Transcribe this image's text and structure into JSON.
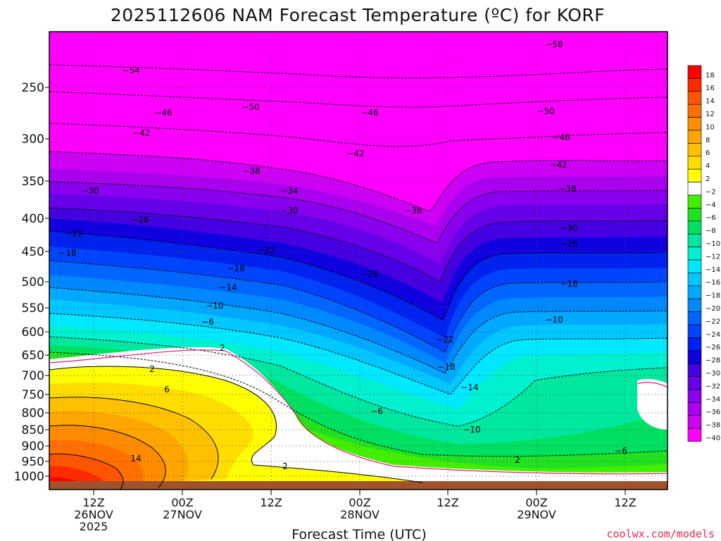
{
  "chart_data": {
    "type": "heatmap",
    "title": "2025112606 NAM Forecast Temperature (ºC) for KORF",
    "xlabel": "Forecast Time (UTC)",
    "ylabel": "",
    "credit": "coolwx.com/models",
    "y_axis": {
      "scale": "pressure (log-like, decreasing upward)",
      "ticks": [
        250,
        300,
        350,
        400,
        450,
        500,
        550,
        600,
        650,
        700,
        750,
        800,
        850,
        900,
        950,
        1000
      ]
    },
    "x_axis": {
      "ticks": [
        {
          "line1": "12Z",
          "line2": "26NOV",
          "line3": "2025"
        },
        {
          "line1": "00Z",
          "line2": "27NOV",
          "line3": ""
        },
        {
          "line1": "12Z",
          "line2": "",
          "line3": ""
        },
        {
          "line1": "00Z",
          "line2": "28NOV",
          "line3": ""
        },
        {
          "line1": "12Z",
          "line2": "",
          "line3": ""
        },
        {
          "line1": "00Z",
          "line2": "29NOV",
          "line3": ""
        },
        {
          "line1": "12Z",
          "line2": "",
          "line3": ""
        }
      ]
    },
    "colorbar": {
      "labels": [
        "18",
        "16",
        "14",
        "12",
        "10",
        "8",
        "6",
        "4",
        "2",
        "-2",
        "-4",
        "-6",
        "-8",
        "-10",
        "-12",
        "-14",
        "-16",
        "-18",
        "-20",
        "-22",
        "-24",
        "-26",
        "-28",
        "-30",
        "-32",
        "-34",
        "-36",
        "-38",
        "-40"
      ],
      "colors": [
        "#ff0000",
        "#ff2a00",
        "#ff5500",
        "#ff7000",
        "#ff8c00",
        "#ffa500",
        "#ffc000",
        "#ffdd00",
        "#ffff00",
        "#ffffff",
        "#44ee00",
        "#22e022",
        "#00e060",
        "#00e8a0",
        "#00f0d0",
        "#00e8ff",
        "#00c8ff",
        "#00a8ff",
        "#0088ff",
        "#0066ff",
        "#0044ff",
        "#0022ee",
        "#1000e0",
        "#4400e0",
        "#6600e8",
        "#8800ee",
        "#aa00f0",
        "#cc00f4",
        "#ff00ff"
      ]
    },
    "contour_labels": [
      {
        "text": "-58"
      },
      {
        "text": "-54"
      },
      {
        "text": "-50"
      },
      {
        "text": "-50"
      },
      {
        "text": "-46"
      },
      {
        "text": "-46"
      },
      {
        "text": "-46"
      },
      {
        "text": "-42"
      },
      {
        "text": "-42"
      },
      {
        "text": "-42"
      },
      {
        "text": "-38"
      },
      {
        "text": "-38"
      },
      {
        "text": "-38"
      },
      {
        "text": "-34"
      },
      {
        "text": "-30"
      },
      {
        "text": "-30"
      },
      {
        "text": "-30"
      },
      {
        "text": "-26"
      },
      {
        "text": "-26"
      },
      {
        "text": "-26"
      },
      {
        "text": "-22"
      },
      {
        "text": "-22"
      },
      {
        "text": "-22"
      },
      {
        "text": "-18"
      },
      {
        "text": "-18"
      },
      {
        "text": "-18"
      },
      {
        "text": "-18"
      },
      {
        "text": "-14"
      },
      {
        "text": "-14"
      },
      {
        "text": "-10"
      },
      {
        "text": "-10"
      },
      {
        "text": "-10"
      },
      {
        "text": "-6"
      },
      {
        "text": "-6"
      },
      {
        "text": "-6"
      },
      {
        "text": "2"
      },
      {
        "text": "2"
      },
      {
        "text": "2"
      },
      {
        "text": "2"
      },
      {
        "text": "6"
      },
      {
        "text": "14"
      }
    ],
    "grid": true,
    "legend": "right (colorbar)"
  }
}
